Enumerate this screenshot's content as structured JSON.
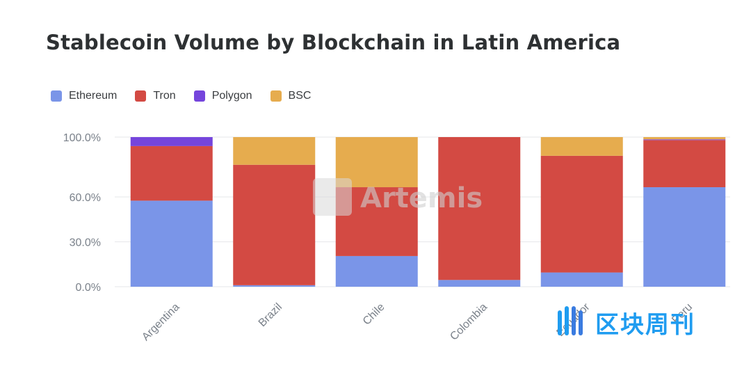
{
  "chart_data": {
    "type": "bar",
    "stacked": true,
    "title": "Stablecoin Volume by Blockchain in Latin America",
    "categories": [
      "Argentina",
      "Brazil",
      "Chile",
      "Colombia",
      "Ecuador",
      "Peru"
    ],
    "series": [
      {
        "name": "Ethereum",
        "color": "#7a95e8",
        "values": [
          57.5,
          1.0,
          20.5,
          4.5,
          9.5,
          66.5
        ]
      },
      {
        "name": "Tron",
        "color": "#d34a43",
        "values": [
          36.5,
          80.5,
          46.0,
          95.5,
          78.0,
          31.5
        ]
      },
      {
        "name": "Polygon",
        "color": "#7545dc",
        "values": [
          6.0,
          0.0,
          0.0,
          0.0,
          0.0,
          0.5
        ]
      },
      {
        "name": "BSC",
        "color": "#e6ac4e",
        "values": [
          0.0,
          18.5,
          33.5,
          0.0,
          12.5,
          1.5
        ]
      }
    ],
    "ylim": [
      0,
      100
    ],
    "yticks": [
      0,
      30,
      60,
      100
    ],
    "ytick_labels": [
      "0.0%",
      "30.0%",
      "60.0%",
      "100.0%"
    ],
    "xlabel": "",
    "ylabel": "",
    "grid": true,
    "legend_position": "top-left"
  },
  "watermarks": {
    "artemis": "Artemis",
    "site": "区块周刊"
  }
}
